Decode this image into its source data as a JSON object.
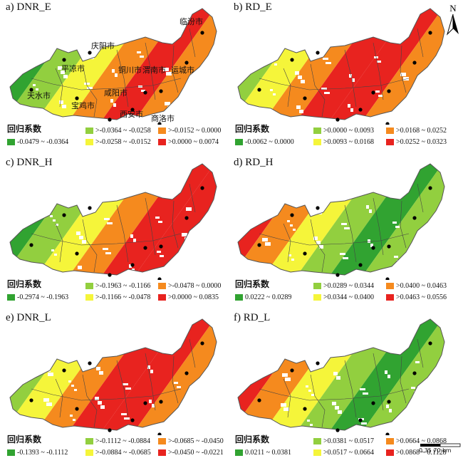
{
  "colors": {
    "darkgreen": "#31a331",
    "lightgreen": "#92cf3f",
    "yellow": "#f5f53a",
    "orange": "#f58a1e",
    "red": "#e8231f"
  },
  "north_label": "N",
  "scale": {
    "ticks": "0  35  70 km"
  },
  "cities": [
    {
      "name": "临汾市"
    },
    {
      "name": "庆阳市"
    },
    {
      "name": "平凉市"
    },
    {
      "name": "铜川市"
    },
    {
      "name": "渭南市"
    },
    {
      "name": "运城市"
    },
    {
      "name": "天水市"
    },
    {
      "name": "咸阳市"
    },
    {
      "name": "宝鸡市"
    },
    {
      "name": "西安市"
    },
    {
      "name": "商洛市"
    }
  ],
  "panels": [
    {
      "title": "a) DNR_E",
      "legend_title": "回归系数",
      "items": [
        {
          "label": "-0.0479 ~ -0.0364",
          "color": "#31a331"
        },
        {
          "label": ">-0.0364 ~ -0.0258",
          "color": "#92cf3f"
        },
        {
          "label": ">-0.0258 ~ -0.0152",
          "color": "#f5f53a"
        },
        {
          "label": ">-0.0152 ~ 0.0000",
          "color": "#f58a1e"
        },
        {
          "label": ">0.0000 ~ 0.0074",
          "color": "#e8231f"
        }
      ]
    },
    {
      "title": "b) RD_E",
      "legend_title": "回归系数",
      "items": [
        {
          "label": "-0.0062 ~ 0.0000",
          "color": "#31a331"
        },
        {
          "label": ">0.0000 ~ 0.0093",
          "color": "#92cf3f"
        },
        {
          "label": ">0.0093 ~ 0.0168",
          "color": "#f5f53a"
        },
        {
          "label": ">0.0168 ~ 0.0252",
          "color": "#f58a1e"
        },
        {
          "label": ">0.0252 ~ 0.0323",
          "color": "#e8231f"
        }
      ]
    },
    {
      "title": "c) DNR_H",
      "legend_title": "回归系数",
      "items": [
        {
          "label": "-0.2974 ~ -0.1963",
          "color": "#31a331"
        },
        {
          "label": ">-0.1963 ~ -0.1166",
          "color": "#92cf3f"
        },
        {
          "label": ">-0.1166 ~ -0.0478",
          "color": "#f5f53a"
        },
        {
          "label": ">-0.0478 ~ 0.0000",
          "color": "#f58a1e"
        },
        {
          "label": ">0.0000 ~ 0.0835",
          "color": "#e8231f"
        }
      ]
    },
    {
      "title": "d) RD_H",
      "legend_title": "回归系数",
      "items": [
        {
          "label": "0.0222 ~ 0.0289",
          "color": "#31a331"
        },
        {
          "label": ">0.0289 ~ 0.0344",
          "color": "#92cf3f"
        },
        {
          "label": ">0.0344 ~ 0.0400",
          "color": "#f5f53a"
        },
        {
          "label": ">0.0400 ~ 0.0463",
          "color": "#f58a1e"
        },
        {
          "label": ">0.0463 ~ 0.0556",
          "color": "#e8231f"
        }
      ]
    },
    {
      "title": "e) DNR_L",
      "legend_title": "回归系数",
      "items": [
        {
          "label": "-0.1393 ~ -0.1112",
          "color": "#31a331"
        },
        {
          "label": ">-0.1112 ~ -0.0884",
          "color": "#92cf3f"
        },
        {
          "label": ">-0.0884 ~ -0.0685",
          "color": "#f5f53a"
        },
        {
          "label": ">-0.0685 ~ -0.0450",
          "color": "#f58a1e"
        },
        {
          "label": ">-0.0450 ~ -0.0221",
          "color": "#e8231f"
        }
      ]
    },
    {
      "title": "f) RD_L",
      "legend_title": "回归系数",
      "items": [
        {
          "label": "0.0211 ~ 0.0381",
          "color": "#31a331"
        },
        {
          "label": ">0.0381 ~ 0.0517",
          "color": "#92cf3f"
        },
        {
          "label": ">0.0517 ~ 0.0664",
          "color": "#f5f53a"
        },
        {
          "label": ">0.0664 ~ 0.0868",
          "color": "#f58a1e"
        },
        {
          "label": ">0.0868 ~ 0.1128",
          "color": "#e8231f"
        }
      ]
    }
  ]
}
